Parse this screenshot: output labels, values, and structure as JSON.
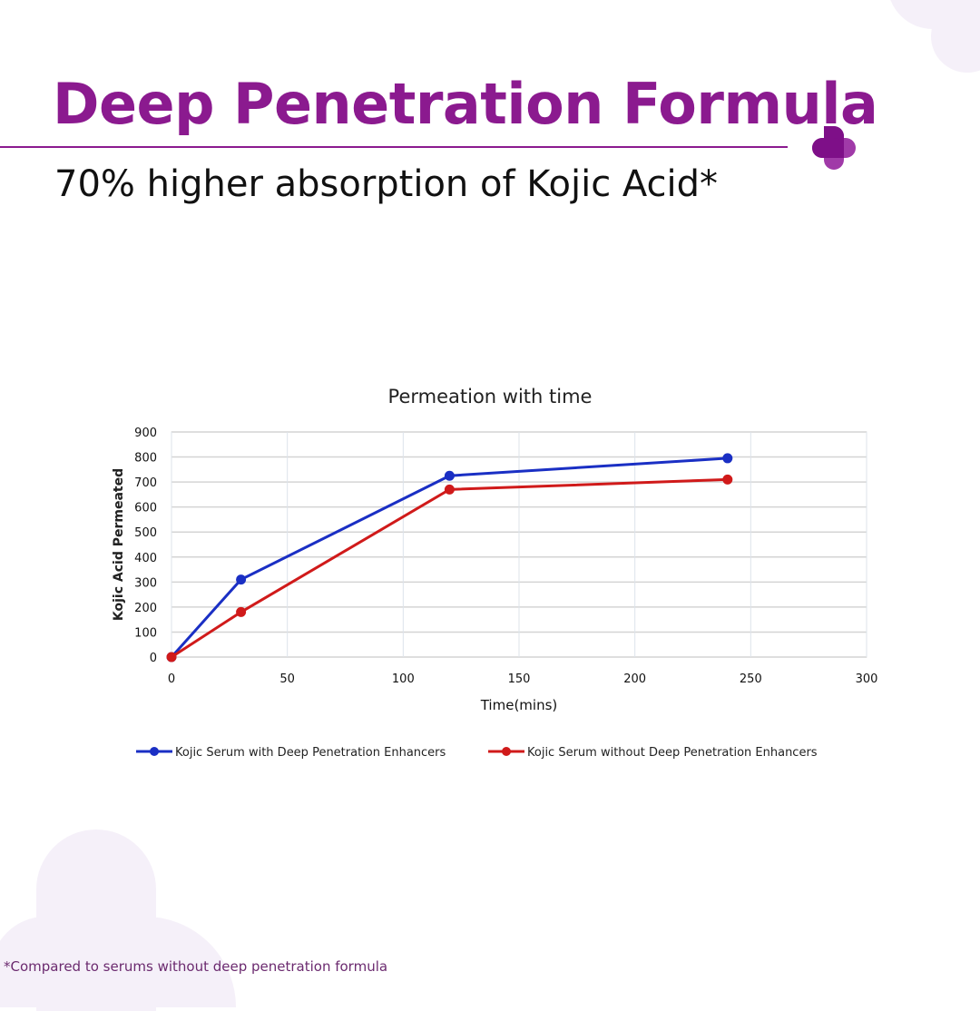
{
  "header": {
    "title": "Deep Penetration Formula",
    "subtitle": "70% higher absorption of Kojic Acid*"
  },
  "footnote": "*Compared to serums without deep penetration formula",
  "brand": {
    "accent": "#8b1a8f",
    "logo_icon": "plus-cross-icon"
  },
  "chart_data": {
    "type": "line",
    "title": "Permeation with time",
    "xlabel": "Time(mins)",
    "ylabel": "Kojic Acid Permeated",
    "xlim": [
      0,
      300
    ],
    "ylim": [
      0,
      900
    ],
    "xticks": [
      0,
      50,
      100,
      150,
      200,
      250,
      300
    ],
    "yticks": [
      0,
      100,
      200,
      300,
      400,
      500,
      600,
      700,
      800,
      900
    ],
    "grid": true,
    "legend_position": "bottom",
    "series": [
      {
        "name": "Kojic Serum with Deep Penetration Enhancers",
        "color": "#1a2fc4",
        "x": [
          0,
          30,
          120,
          240
        ],
        "y": [
          0,
          310,
          725,
          795
        ]
      },
      {
        "name": "Kojic Serum without Deep Penetration Enhancers",
        "color": "#d01a1a",
        "x": [
          0,
          30,
          120,
          240
        ],
        "y": [
          0,
          180,
          670,
          710
        ]
      }
    ]
  }
}
